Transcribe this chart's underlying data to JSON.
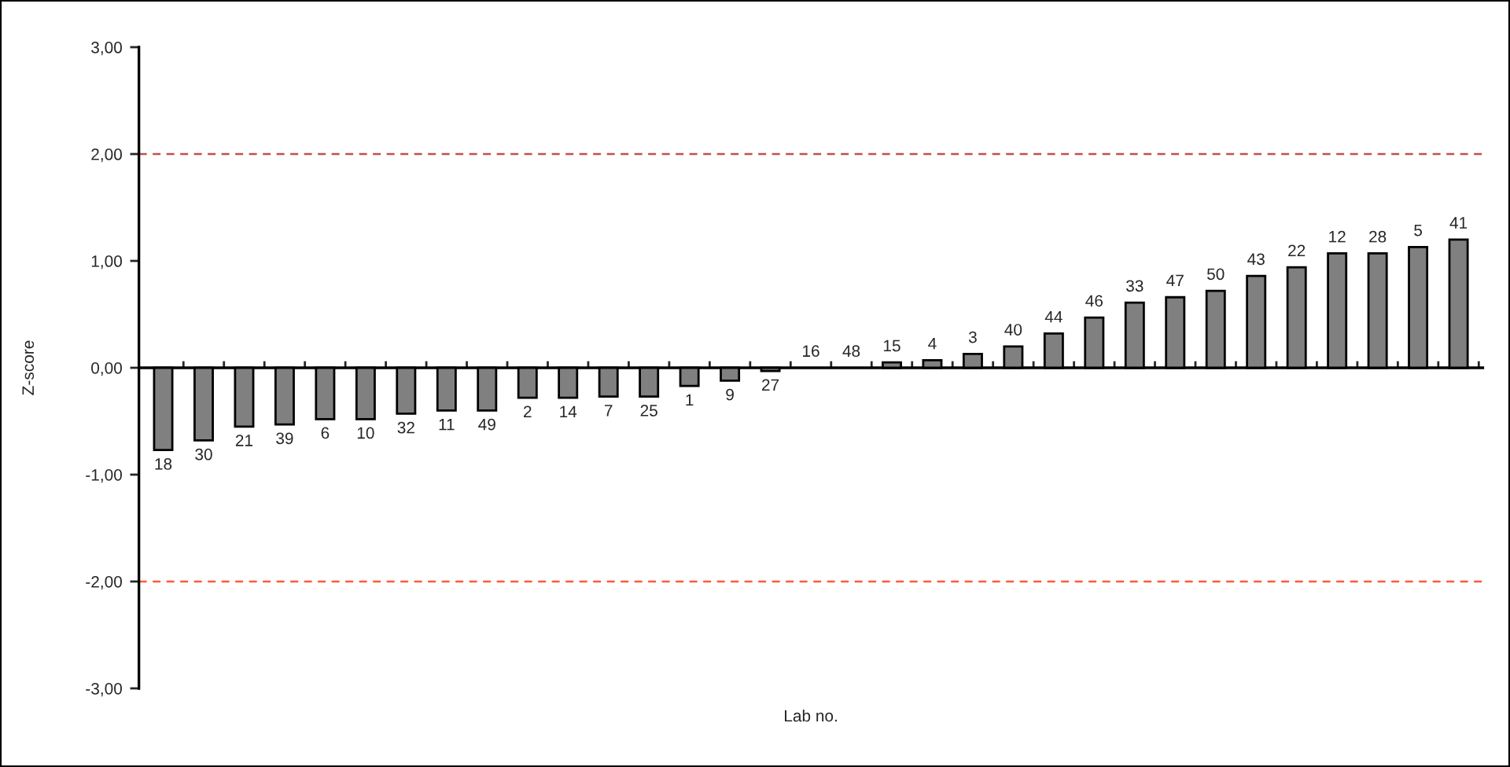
{
  "chart_data": {
    "type": "bar",
    "xlabel": "Lab no.",
    "ylabel": "Z-score",
    "categories": [
      "18",
      "30",
      "21",
      "39",
      "6",
      "10",
      "32",
      "11",
      "49",
      "2",
      "14",
      "7",
      "25",
      "1",
      "9",
      "27",
      "16",
      "48",
      "15",
      "4",
      "3",
      "40",
      "44",
      "46",
      "33",
      "47",
      "50",
      "43",
      "22",
      "12",
      "28",
      "5",
      "41"
    ],
    "values": [
      -0.77,
      -0.68,
      -0.55,
      -0.53,
      -0.48,
      -0.48,
      -0.43,
      -0.4,
      -0.4,
      -0.28,
      -0.28,
      -0.27,
      -0.27,
      -0.17,
      -0.12,
      -0.03,
      0,
      0,
      0.05,
      0.07,
      0.13,
      0.2,
      0.32,
      0.47,
      0.61,
      0.66,
      0.72,
      0.86,
      0.94,
      1.07,
      1.07,
      1.13,
      1.2
    ],
    "color": "#808080",
    "ylim": [
      -3,
      3
    ],
    "yticks": [
      {
        "value": -3,
        "label": "-3,00"
      },
      {
        "value": -2,
        "label": "-2,00"
      },
      {
        "value": -1,
        "label": "-1,00"
      },
      {
        "value": 0,
        "label": "0,00"
      },
      {
        "value": 1,
        "label": "1,00"
      },
      {
        "value": 2,
        "label": "2,00"
      },
      {
        "value": 3,
        "label": "3,00"
      }
    ],
    "ref_lines": [
      {
        "axis": "y",
        "value": 2,
        "color": "#c05050",
        "line_style": "dashed"
      },
      {
        "axis": "y",
        "value": -2,
        "color": "#ff5a3c",
        "line_style": "dashed"
      }
    ],
    "grid": false,
    "legend": false
  }
}
